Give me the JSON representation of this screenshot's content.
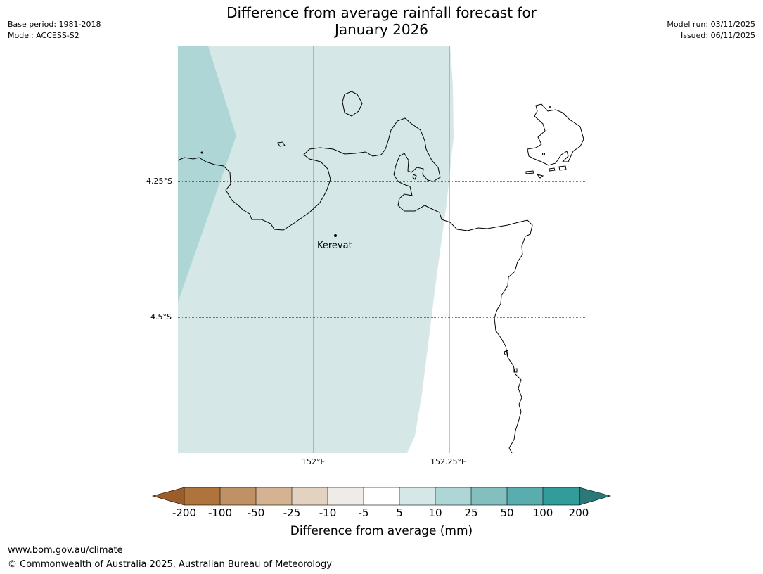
{
  "title": {
    "line1": "Difference from average rainfall forecast for",
    "line2": "January 2026"
  },
  "meta_left": {
    "base_period": "Base period: 1981-2018",
    "model": "Model: ACCESS-S2"
  },
  "meta_right": {
    "model_run": "Model run: 03/11/2025",
    "issued": "Issued: 06/11/2025"
  },
  "map": {
    "place_label": "Kerevat",
    "lat_labels": [
      "4.25°S",
      "4.5°S"
    ],
    "lon_labels": [
      "152°E",
      "152.25°E"
    ],
    "colors": {
      "band_5_10": "#d5e8e7",
      "band_10_25": "#aed6d6",
      "coastline": "#000000",
      "meridian": "#7f8c8a"
    }
  },
  "colorbar": {
    "ticks": [
      "-200",
      "-100",
      "-50",
      "-25",
      "-10",
      "-5",
      "5",
      "10",
      "25",
      "50",
      "100",
      "200"
    ],
    "colors": [
      "#9b5e2a",
      "#ae743b",
      "#c19166",
      "#d5b392",
      "#e4d2c0",
      "#efebe8",
      "#ffffff",
      "#d5e8e7",
      "#aed6d6",
      "#82bfbe",
      "#5aadaf",
      "#319c9a",
      "#2a7878"
    ],
    "label": "Difference from average (mm)"
  },
  "footer": {
    "url": "www.bom.gov.au/climate",
    "copyright": "© Commonwealth of Australia 2025, Australian Bureau of Meteorology"
  }
}
